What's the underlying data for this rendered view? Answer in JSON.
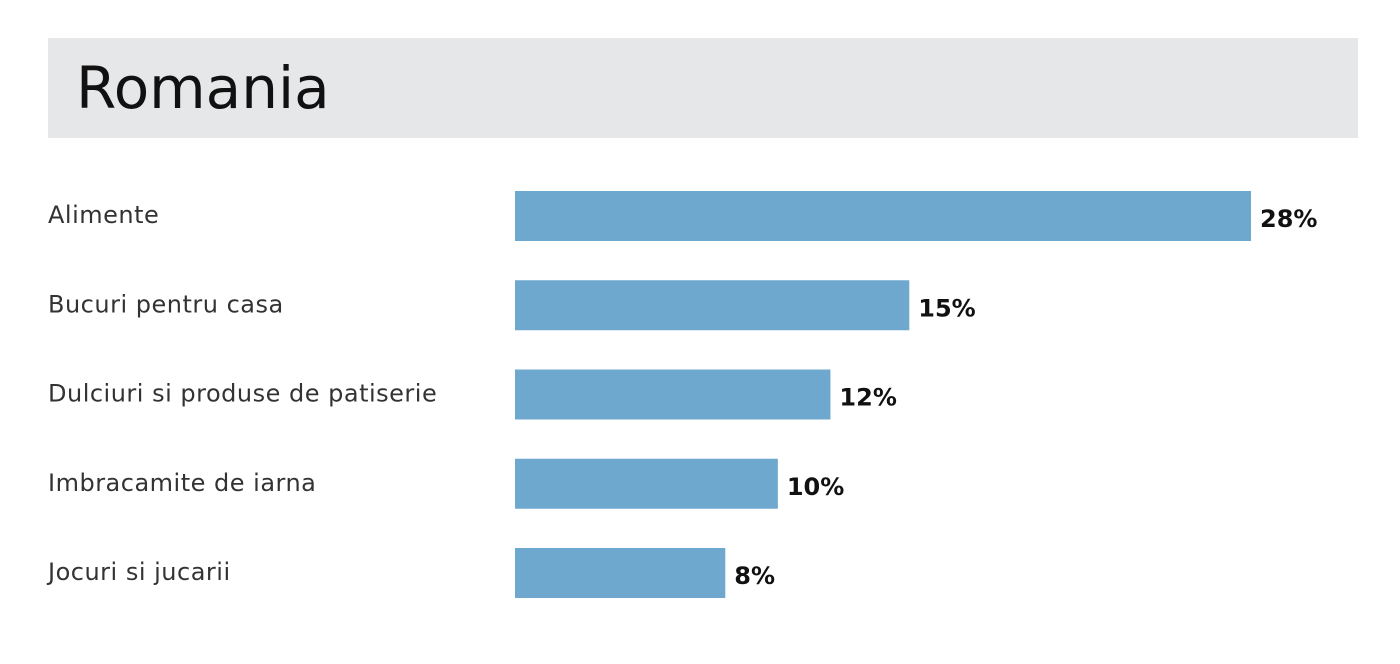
{
  "chart_data": {
    "type": "hbar",
    "title": "Romania",
    "categories": [
      "Alimente",
      "Bucuri pentru casa",
      "Dulciuri si produse de patiserie",
      "Imbracamite de iarna",
      "Jocuri si jucarii"
    ],
    "values": [
      28,
      15,
      12,
      10,
      8
    ],
    "value_labels": [
      "28%",
      "15%",
      "12%",
      "10%",
      "8%"
    ],
    "color": "#6fa8cf"
  }
}
